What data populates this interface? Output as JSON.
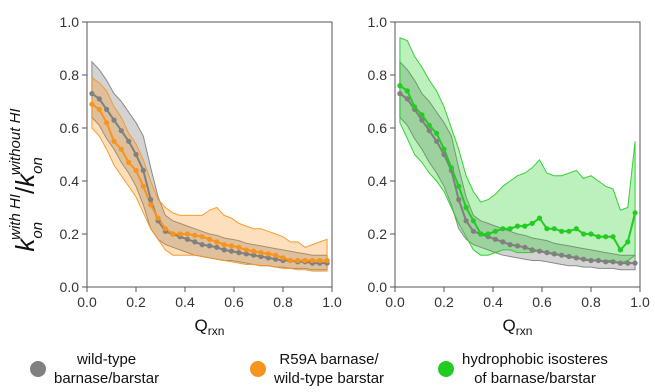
{
  "chart_data": [
    {
      "type": "line",
      "panel": "left",
      "xlabel_main": "Q",
      "xlabel_sub": "rxn",
      "ylabel_main": "k",
      "ylabel_sub": "on",
      "ylabel_sup_num": "with HI",
      "ylabel_sup_den": "without HI",
      "xlim": [
        0,
        1.0
      ],
      "ylim": [
        0,
        1.0
      ],
      "xticks": [
        "0.0",
        "0.2",
        "0.4",
        "0.6",
        "0.8",
        "1.0"
      ],
      "yticks": [
        "0.0",
        "0.2",
        "0.4",
        "0.6",
        "0.8",
        "1.0"
      ],
      "series": [
        {
          "key": "wt",
          "color": "#808080",
          "x": [
            0.02,
            0.05,
            0.08,
            0.11,
            0.14,
            0.17,
            0.2,
            0.23,
            0.26,
            0.29,
            0.32,
            0.35,
            0.38,
            0.41,
            0.44,
            0.47,
            0.5,
            0.53,
            0.56,
            0.59,
            0.62,
            0.65,
            0.68,
            0.71,
            0.74,
            0.77,
            0.8,
            0.83,
            0.86,
            0.89,
            0.92,
            0.95,
            0.98
          ],
          "y": [
            0.73,
            0.71,
            0.67,
            0.63,
            0.59,
            0.55,
            0.5,
            0.44,
            0.33,
            0.25,
            0.21,
            0.2,
            0.19,
            0.18,
            0.17,
            0.16,
            0.155,
            0.15,
            0.14,
            0.135,
            0.13,
            0.125,
            0.12,
            0.115,
            0.11,
            0.105,
            0.1,
            0.1,
            0.095,
            0.095,
            0.09,
            0.09,
            0.09
          ],
          "lower": [
            0.64,
            0.61,
            0.56,
            0.52,
            0.47,
            0.43,
            0.38,
            0.31,
            0.22,
            0.18,
            0.16,
            0.15,
            0.14,
            0.13,
            0.12,
            0.115,
            0.11,
            0.105,
            0.1,
            0.1,
            0.095,
            0.09,
            0.085,
            0.08,
            0.08,
            0.075,
            0.075,
            0.07,
            0.07,
            0.07,
            0.065,
            0.065,
            0.065
          ],
          "upper": [
            0.85,
            0.82,
            0.78,
            0.73,
            0.7,
            0.66,
            0.62,
            0.57,
            0.45,
            0.34,
            0.27,
            0.25,
            0.24,
            0.23,
            0.22,
            0.21,
            0.2,
            0.195,
            0.185,
            0.18,
            0.175,
            0.165,
            0.16,
            0.155,
            0.15,
            0.145,
            0.14,
            0.135,
            0.13,
            0.125,
            0.12,
            0.12,
            0.12
          ]
        },
        {
          "key": "r59a",
          "color": "#f7941d",
          "x": [
            0.02,
            0.05,
            0.08,
            0.11,
            0.14,
            0.17,
            0.2,
            0.23,
            0.26,
            0.29,
            0.32,
            0.35,
            0.38,
            0.41,
            0.44,
            0.47,
            0.5,
            0.53,
            0.56,
            0.59,
            0.62,
            0.65,
            0.68,
            0.71,
            0.74,
            0.77,
            0.8,
            0.83,
            0.86,
            0.89,
            0.92,
            0.95,
            0.98
          ],
          "y": [
            0.69,
            0.67,
            0.62,
            0.55,
            0.52,
            0.47,
            0.44,
            0.38,
            0.31,
            0.26,
            0.22,
            0.2,
            0.2,
            0.2,
            0.195,
            0.19,
            0.18,
            0.17,
            0.16,
            0.155,
            0.15,
            0.14,
            0.135,
            0.13,
            0.125,
            0.12,
            0.11,
            0.1,
            0.1,
            0.1,
            0.1,
            0.1,
            0.1
          ],
          "lower": [
            0.6,
            0.57,
            0.52,
            0.46,
            0.42,
            0.38,
            0.34,
            0.28,
            0.22,
            0.18,
            0.14,
            0.12,
            0.12,
            0.12,
            0.12,
            0.115,
            0.11,
            0.105,
            0.1,
            0.095,
            0.09,
            0.085,
            0.085,
            0.08,
            0.08,
            0.075,
            0.07,
            0.07,
            0.065,
            0.065,
            0.06,
            0.06,
            0.06
          ],
          "upper": [
            0.79,
            0.77,
            0.74,
            0.68,
            0.64,
            0.58,
            0.54,
            0.48,
            0.4,
            0.33,
            0.3,
            0.28,
            0.27,
            0.27,
            0.27,
            0.27,
            0.29,
            0.3,
            0.27,
            0.26,
            0.24,
            0.23,
            0.22,
            0.22,
            0.21,
            0.2,
            0.19,
            0.17,
            0.17,
            0.15,
            0.16,
            0.17,
            0.18
          ]
        }
      ]
    },
    {
      "type": "line",
      "panel": "right",
      "xlabel_main": "Q",
      "xlabel_sub": "rxn",
      "xlim": [
        0,
        1.0
      ],
      "ylim": [
        0,
        1.0
      ],
      "xticks": [
        "0.0",
        "0.2",
        "0.4",
        "0.6",
        "0.8",
        "1.0"
      ],
      "yticks": [
        "0.0",
        "0.2",
        "0.4",
        "0.6",
        "0.8",
        "1.0"
      ],
      "series": [
        {
          "key": "wt",
          "color": "#808080",
          "x": [
            0.02,
            0.05,
            0.08,
            0.11,
            0.14,
            0.17,
            0.2,
            0.23,
            0.26,
            0.29,
            0.32,
            0.35,
            0.38,
            0.41,
            0.44,
            0.47,
            0.5,
            0.53,
            0.56,
            0.59,
            0.62,
            0.65,
            0.68,
            0.71,
            0.74,
            0.77,
            0.8,
            0.83,
            0.86,
            0.89,
            0.92,
            0.95,
            0.98
          ],
          "y": [
            0.73,
            0.71,
            0.67,
            0.63,
            0.59,
            0.55,
            0.5,
            0.44,
            0.33,
            0.25,
            0.21,
            0.2,
            0.19,
            0.18,
            0.17,
            0.16,
            0.155,
            0.15,
            0.14,
            0.135,
            0.13,
            0.125,
            0.12,
            0.115,
            0.11,
            0.105,
            0.1,
            0.1,
            0.095,
            0.095,
            0.09,
            0.09,
            0.09
          ],
          "lower": [
            0.64,
            0.61,
            0.56,
            0.52,
            0.47,
            0.43,
            0.38,
            0.31,
            0.22,
            0.18,
            0.16,
            0.15,
            0.14,
            0.13,
            0.12,
            0.115,
            0.11,
            0.105,
            0.1,
            0.1,
            0.095,
            0.09,
            0.085,
            0.08,
            0.08,
            0.075,
            0.075,
            0.07,
            0.07,
            0.07,
            0.065,
            0.065,
            0.065
          ],
          "upper": [
            0.85,
            0.82,
            0.78,
            0.73,
            0.7,
            0.66,
            0.62,
            0.57,
            0.45,
            0.34,
            0.27,
            0.25,
            0.24,
            0.23,
            0.22,
            0.21,
            0.2,
            0.195,
            0.185,
            0.18,
            0.175,
            0.165,
            0.16,
            0.155,
            0.15,
            0.145,
            0.14,
            0.135,
            0.13,
            0.125,
            0.12,
            0.12,
            0.12
          ]
        },
        {
          "key": "hydro",
          "color": "#22cc22",
          "x": [
            0.02,
            0.05,
            0.08,
            0.11,
            0.14,
            0.17,
            0.2,
            0.23,
            0.26,
            0.29,
            0.32,
            0.35,
            0.38,
            0.41,
            0.44,
            0.47,
            0.5,
            0.53,
            0.56,
            0.59,
            0.62,
            0.65,
            0.68,
            0.71,
            0.74,
            0.77,
            0.8,
            0.83,
            0.86,
            0.89,
            0.92,
            0.95,
            0.98
          ],
          "y": [
            0.76,
            0.74,
            0.68,
            0.65,
            0.61,
            0.58,
            0.52,
            0.45,
            0.38,
            0.3,
            0.25,
            0.2,
            0.2,
            0.21,
            0.22,
            0.22,
            0.23,
            0.23,
            0.24,
            0.26,
            0.22,
            0.22,
            0.21,
            0.21,
            0.22,
            0.2,
            0.2,
            0.19,
            0.19,
            0.19,
            0.14,
            0.17,
            0.28
          ],
          "lower": [
            0.62,
            0.56,
            0.5,
            0.47,
            0.43,
            0.4,
            0.36,
            0.3,
            0.24,
            0.19,
            0.14,
            0.12,
            0.12,
            0.13,
            0.14,
            0.14,
            0.13,
            0.13,
            0.13,
            0.14,
            0.13,
            0.12,
            0.12,
            0.11,
            0.11,
            0.1,
            0.1,
            0.1,
            0.1,
            0.1,
            0.09,
            0.1,
            0.12
          ],
          "upper": [
            0.94,
            0.93,
            0.87,
            0.83,
            0.78,
            0.74,
            0.68,
            0.6,
            0.52,
            0.42,
            0.36,
            0.32,
            0.33,
            0.35,
            0.38,
            0.4,
            0.42,
            0.43,
            0.45,
            0.48,
            0.43,
            0.42,
            0.42,
            0.43,
            0.44,
            0.41,
            0.42,
            0.4,
            0.38,
            0.37,
            0.29,
            0.3,
            0.55
          ]
        }
      ]
    }
  ],
  "legend": [
    {
      "key": "wt",
      "color": "#808080",
      "lines": [
        "wild-type",
        "barnase/barstar"
      ]
    },
    {
      "key": "r59a",
      "color": "#f7941d",
      "lines": [
        "R59A barnase/",
        "wild-type barstar"
      ]
    },
    {
      "key": "hydro",
      "color": "#22cc22",
      "lines": [
        "hydrophobic isosteres",
        "of barnase/barstar"
      ]
    }
  ]
}
